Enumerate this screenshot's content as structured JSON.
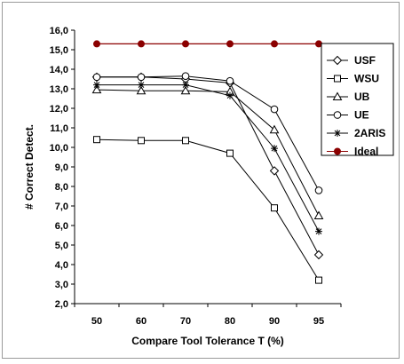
{
  "chart_data": {
    "type": "line",
    "title": "",
    "xlabel": "Compare Tool Tolerance T (%)",
    "ylabel": "# Correct Detect.",
    "categories": [
      "50",
      "60",
      "70",
      "80",
      "90",
      "95"
    ],
    "ylim": [
      2.0,
      16.0
    ],
    "yticks": [
      "2,0",
      "3,0",
      "4,0",
      "5,0",
      "6,0",
      "7,0",
      "8,0",
      "9,0",
      "10,0",
      "11,0",
      "12,0",
      "13,0",
      "14,0",
      "15,0",
      "16,0"
    ],
    "grid": false,
    "legend_position": "right",
    "series": [
      {
        "name": "USF",
        "marker": "diamond",
        "color": "#000000",
        "values": [
          13.6,
          13.6,
          13.5,
          13.3,
          8.8,
          4.5
        ]
      },
      {
        "name": "WSU",
        "marker": "square",
        "color": "#000000",
        "values": [
          10.4,
          10.35,
          10.35,
          9.7,
          6.9,
          3.2
        ]
      },
      {
        "name": "UB",
        "marker": "triangle",
        "color": "#000000",
        "values": [
          12.95,
          12.9,
          12.9,
          12.85,
          10.9,
          6.5
        ]
      },
      {
        "name": "UE",
        "marker": "circle-open",
        "color": "#000000",
        "values": [
          13.6,
          13.6,
          13.65,
          13.4,
          11.95,
          7.8
        ]
      },
      {
        "name": "2ARIS",
        "marker": "star",
        "color": "#000000",
        "values": [
          13.2,
          13.2,
          13.2,
          12.65,
          9.95,
          5.7
        ]
      },
      {
        "name": "Ideal",
        "marker": "circle-filled",
        "color": "#8b0000",
        "values": [
          15.3,
          15.3,
          15.3,
          15.3,
          15.3,
          15.3
        ]
      }
    ]
  }
}
